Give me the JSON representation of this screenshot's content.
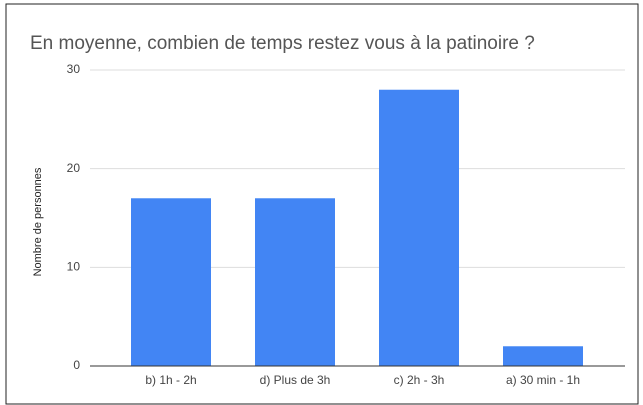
{
  "chart_data": {
    "type": "bar",
    "title": "En moyenne, combien de temps restez vous à la patinoire ?",
    "y_label": "Nombre de personnes",
    "categories": [
      "b) 1h - 2h",
      "d) Plus de 3h",
      "c) 2h - 3h",
      "a) 30 min - 1h"
    ],
    "values": [
      17,
      17,
      28,
      2
    ],
    "color": "#4285f4",
    "ylim": [
      0,
      30
    ],
    "yticks": [
      0,
      10,
      20,
      30
    ],
    "grid": true
  }
}
